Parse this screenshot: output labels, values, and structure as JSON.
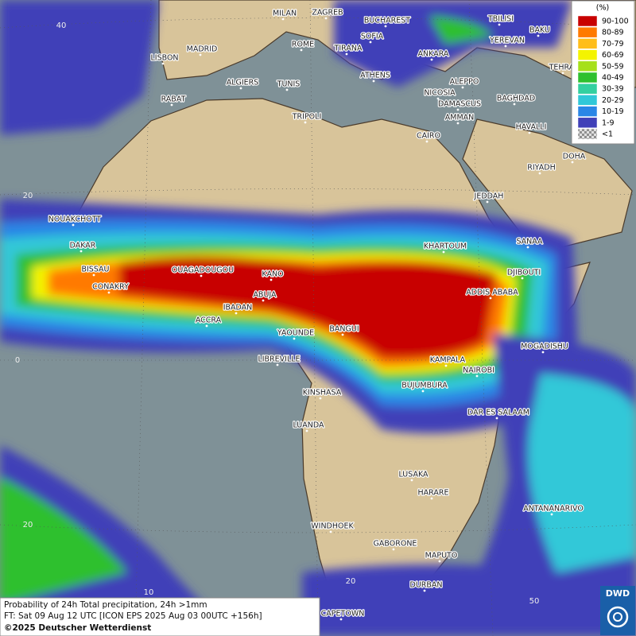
{
  "legend": {
    "title": "(%)",
    "items": [
      {
        "label": "90-100",
        "color": "#c80000"
      },
      {
        "label": "80-89",
        "color": "#ff7a00"
      },
      {
        "label": "70-79",
        "color": "#ffbe1a"
      },
      {
        "label": "60-69",
        "color": "#f4f400"
      },
      {
        "label": "50-59",
        "color": "#a6e01a"
      },
      {
        "label": "40-49",
        "color": "#2fc02f"
      },
      {
        "label": "30-39",
        "color": "#33d0a0"
      },
      {
        "label": "20-29",
        "color": "#30c8d8"
      },
      {
        "label": "10-19",
        "color": "#2a86e6"
      },
      {
        "label": "1-9",
        "color": "#4040b8"
      },
      {
        "label": "<1",
        "color": "#b0b0b0"
      }
    ]
  },
  "cities": [
    {
      "label": "MILAN"
    },
    {
      "label": "ZAGREB"
    },
    {
      "label": "BUCHAREST"
    },
    {
      "label": "TBILISI"
    },
    {
      "label": "BAKU"
    },
    {
      "label": "SOFIA"
    },
    {
      "label": "ROME"
    },
    {
      "label": "TIRANA"
    },
    {
      "label": "YEREVAN"
    },
    {
      "label": "MADRID"
    },
    {
      "label": "ANKARA"
    },
    {
      "label": "LISBON"
    },
    {
      "label": "TEHRAN"
    },
    {
      "label": "ALGIERS"
    },
    {
      "label": "TUNIS"
    },
    {
      "label": "ATHENS"
    },
    {
      "label": "ALEPPO"
    },
    {
      "label": "RABAT"
    },
    {
      "label": "NICOSIA"
    },
    {
      "label": "BAGHDAD"
    },
    {
      "label": "DAMASCUS"
    },
    {
      "label": "TRIPOLI"
    },
    {
      "label": "AMMAN"
    },
    {
      "label": "HAVALLI"
    },
    {
      "label": "CAIRO"
    },
    {
      "label": "DOHA"
    },
    {
      "label": "RIYADH"
    },
    {
      "label": "JEDDAH"
    },
    {
      "label": "NOUAKCHOTT"
    },
    {
      "label": "SANAA"
    },
    {
      "label": "DAKAR"
    },
    {
      "label": "KHARTOUM"
    },
    {
      "label": "BISSAU"
    },
    {
      "label": "OUAGADOUGOU"
    },
    {
      "label": "DJIBOUTI"
    },
    {
      "label": "KANO"
    },
    {
      "label": "CONAKRY"
    },
    {
      "label": "ABUJA"
    },
    {
      "label": "ADDIS ABABA"
    },
    {
      "label": "IBADAN"
    },
    {
      "label": "ACCRA"
    },
    {
      "label": "YAOUNDE"
    },
    {
      "label": "BANGUI"
    },
    {
      "label": "MOGADISHU"
    },
    {
      "label": "LIBREVILLE"
    },
    {
      "label": "KAMPALA"
    },
    {
      "label": "NAIROBI"
    },
    {
      "label": "BUJUMBURA"
    },
    {
      "label": "KINSHASA"
    },
    {
      "label": "DAR ES SALAAM"
    },
    {
      "label": "LUANDA"
    },
    {
      "label": "LUSAKA"
    },
    {
      "label": "HARARE"
    },
    {
      "label": "ANTANANARIVO"
    },
    {
      "label": "WINDHOEK"
    },
    {
      "label": "GABORONE"
    },
    {
      "label": "MAPUTO"
    },
    {
      "label": "DURBAN"
    },
    {
      "label": "CAPETOWN"
    }
  ],
  "grid_labels": [
    "40",
    "20",
    "0",
    "20",
    "10",
    "20",
    "50"
  ],
  "info": {
    "line1": "Probability of 24h Total precipitation, 24h >1mm",
    "line2": "FT: Sat 09 Aug 12 UTC [ICON EPS 2025 Aug 03 00UTC +156h]",
    "line3": "©2025 Deutscher Wetterdienst"
  },
  "logo": "DWD"
}
